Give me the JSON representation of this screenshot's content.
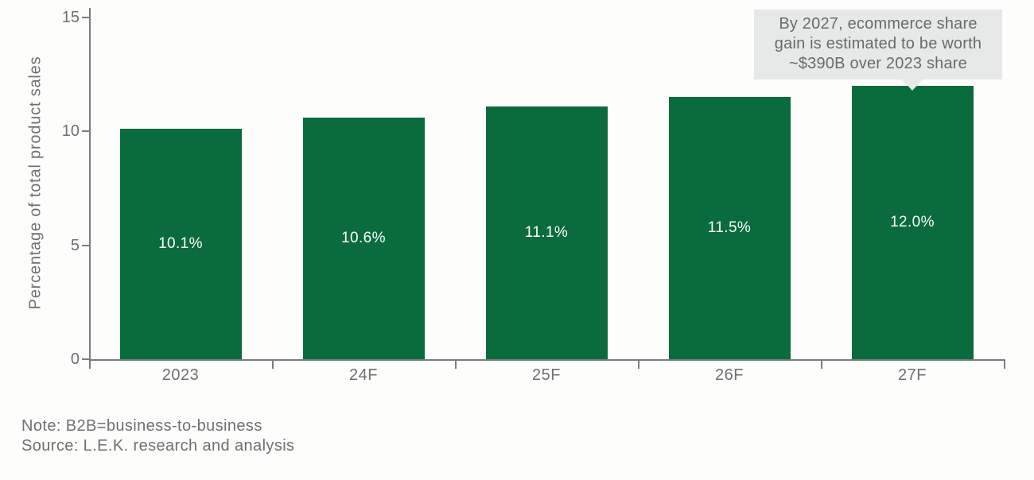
{
  "chart_data": {
    "type": "bar",
    "categories": [
      "2023",
      "24F",
      "25F",
      "26F",
      "27F"
    ],
    "values": [
      10.1,
      10.6,
      11.1,
      11.5,
      12.0
    ],
    "bar_labels": [
      "10.1%",
      "10.6%",
      "11.1%",
      "11.5%",
      "12.0%"
    ],
    "title": "",
    "xlabel": "",
    "ylabel": "Percentage of total product sales",
    "ylim": [
      0,
      15
    ],
    "yticks": [
      0,
      5,
      10,
      15
    ],
    "grid": false,
    "legend": false,
    "bar_color": "#0a6b3d",
    "bar_label_color": "#ffffff",
    "annotation": "By 2027, ecommerce share gain is estimated to be worth ~$390B over 2023 share"
  },
  "annotation": {
    "lines": [
      "By 2027, ecommerce share",
      "gain is estimated to be worth",
      "~$390B over 2023 share"
    ]
  },
  "footer": {
    "note": "Note: B2B=business-to-business",
    "source": "Source: L.E.K. research and analysis"
  },
  "colors": {
    "bar_green": "#0a6b3d",
    "axis_line": "#7a7d7e",
    "text_gray": "#6d7170",
    "annotation_bg": "#e7e9e8",
    "annotation_text": "#666c6b",
    "bar_label_white": "#ffffff",
    "background": "#fdfdfc"
  }
}
